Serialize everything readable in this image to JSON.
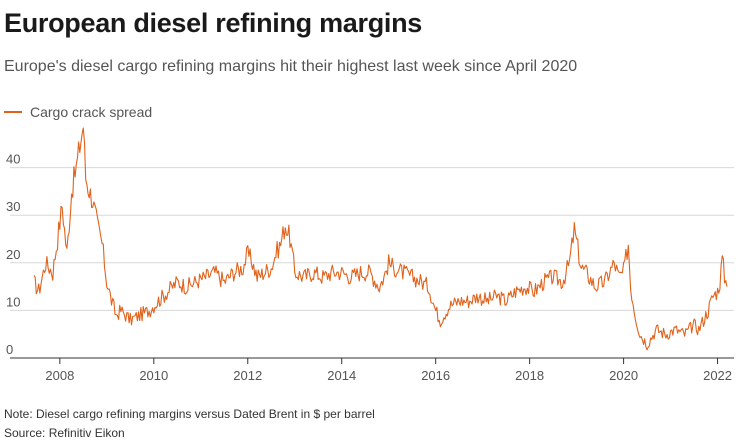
{
  "header": {
    "title": "European diesel refining margins",
    "subtitle": "Europe's diesel cargo refining margins hit their highest last week since April 2020"
  },
  "legend": {
    "label": "Cargo crack spread"
  },
  "footer": {
    "note": "Note: Diesel cargo refining margins versus Dated Brent in $ per barrel",
    "source": "Source: Refinitiv Eikon"
  },
  "colors": {
    "series": "#e0621b",
    "grid": "#d8d8d8",
    "axis": "#333333"
  },
  "chart_data": {
    "type": "line",
    "title": "European diesel refining margins",
    "xlabel": "",
    "ylabel": "",
    "unit": "$ per barrel",
    "xlim": [
      2007.45,
      2022.35
    ],
    "ylim": [
      0,
      50
    ],
    "y_ticks": [
      0,
      10,
      20,
      30,
      40
    ],
    "x_ticks": [
      2008,
      2010,
      2012,
      2014,
      2016,
      2018,
      2020,
      2022
    ],
    "x_tick_labels": [
      "2008",
      "2010",
      "2012",
      "2014",
      "2016",
      "2018",
      "2020",
      "2022"
    ],
    "grid": true,
    "series": [
      {
        "name": "Cargo crack spread",
        "x": [
          2007.45,
          2007.55,
          2007.7,
          2007.85,
          2007.95,
          2008.05,
          2008.15,
          2008.25,
          2008.35,
          2008.45,
          2008.5,
          2008.55,
          2008.6,
          2008.7,
          2008.8,
          2008.9,
          2009.0,
          2009.1,
          2009.2,
          2009.3,
          2009.5,
          2009.7,
          2009.9,
          2010.1,
          2010.3,
          2010.5,
          2010.7,
          2010.9,
          2011.1,
          2011.3,
          2011.5,
          2011.7,
          2011.9,
          2012.0,
          2012.1,
          2012.2,
          2012.35,
          2012.5,
          2012.6,
          2012.7,
          2012.8,
          2012.9,
          2013.0,
          2013.2,
          2013.4,
          2013.6,
          2013.8,
          2014.0,
          2014.2,
          2014.4,
          2014.6,
          2014.8,
          2014.9,
          2015.0,
          2015.1,
          2015.3,
          2015.5,
          2015.7,
          2015.85,
          2016.0,
          2016.1,
          2016.3,
          2016.5,
          2016.7,
          2016.9,
          2017.1,
          2017.3,
          2017.5,
          2017.7,
          2017.9,
          2018.1,
          2018.3,
          2018.5,
          2018.7,
          2018.85,
          2018.95,
          2019.1,
          2019.2,
          2019.4,
          2019.6,
          2019.7,
          2019.8,
          2019.9,
          2020.0,
          2020.1,
          2020.15,
          2020.25,
          2020.35,
          2020.5,
          2020.7,
          2020.9,
          2021.1,
          2021.3,
          2021.5,
          2021.6,
          2021.7,
          2021.8,
          2021.9,
          2022.0,
          2022.05,
          2022.1,
          2022.15,
          2022.2
        ],
        "values": [
          16,
          14,
          20,
          18,
          25,
          32,
          22,
          35,
          40,
          46,
          49,
          38,
          36,
          33,
          28,
          24,
          16,
          12,
          9,
          10,
          8,
          9,
          10,
          12,
          14,
          16,
          15,
          16,
          17,
          18,
          16,
          18,
          19,
          22,
          20,
          17,
          18,
          19,
          22,
          24,
          28,
          25,
          18,
          17,
          18,
          17,
          18,
          18,
          17,
          18,
          18,
          15,
          17,
          20,
          19,
          18,
          17,
          16,
          15,
          10,
          8,
          11,
          12,
          12,
          13,
          12,
          13,
          12,
          14,
          15,
          14,
          16,
          17,
          16,
          20,
          27,
          19,
          18,
          15,
          16,
          18,
          20,
          17,
          18,
          24,
          15,
          9,
          5,
          3,
          6,
          5,
          6,
          5,
          7,
          6,
          8,
          10,
          13,
          14,
          16,
          21,
          17,
          15
        ]
      }
    ]
  }
}
